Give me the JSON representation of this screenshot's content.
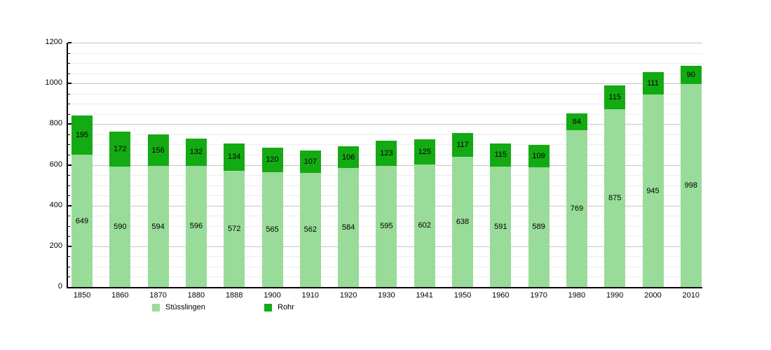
{
  "chart_data": {
    "type": "bar",
    "stacked": true,
    "title": "",
    "xlabel": "",
    "ylabel": "",
    "categories": [
      "1850",
      "1860",
      "1870",
      "1880",
      "1888",
      "1900",
      "1910",
      "1920",
      "1930",
      "1941",
      "1950",
      "1960",
      "1970",
      "1980",
      "1990",
      "2000",
      "2010"
    ],
    "series": [
      {
        "name": "Stüsslingen",
        "color": "#99db99",
        "values": [
          649,
          590,
          594,
          596,
          572,
          565,
          562,
          584,
          595,
          602,
          638,
          591,
          589,
          769,
          875,
          945,
          998
        ]
      },
      {
        "name": "Rohr",
        "color": "#13aa13",
        "values": [
          195,
          172,
          156,
          132,
          134,
          120,
          107,
          106,
          123,
          125,
          117,
          115,
          109,
          84,
          115,
          111,
          90
        ]
      }
    ],
    "value_labels_visible": true,
    "ylim": [
      0,
      1200
    ],
    "y_major_step": 200,
    "y_minor_step": 50,
    "y_tick_labels": [
      "0",
      "200",
      "400",
      "600",
      "800",
      "1000",
      "1200"
    ],
    "grid": true,
    "legend_position": "bottom-left",
    "label_color": "#000000",
    "axis_color": "#000000",
    "major_grid_color": "#c6c6c6",
    "minor_grid_color": "#ededed",
    "background_color": "#ffffff"
  }
}
